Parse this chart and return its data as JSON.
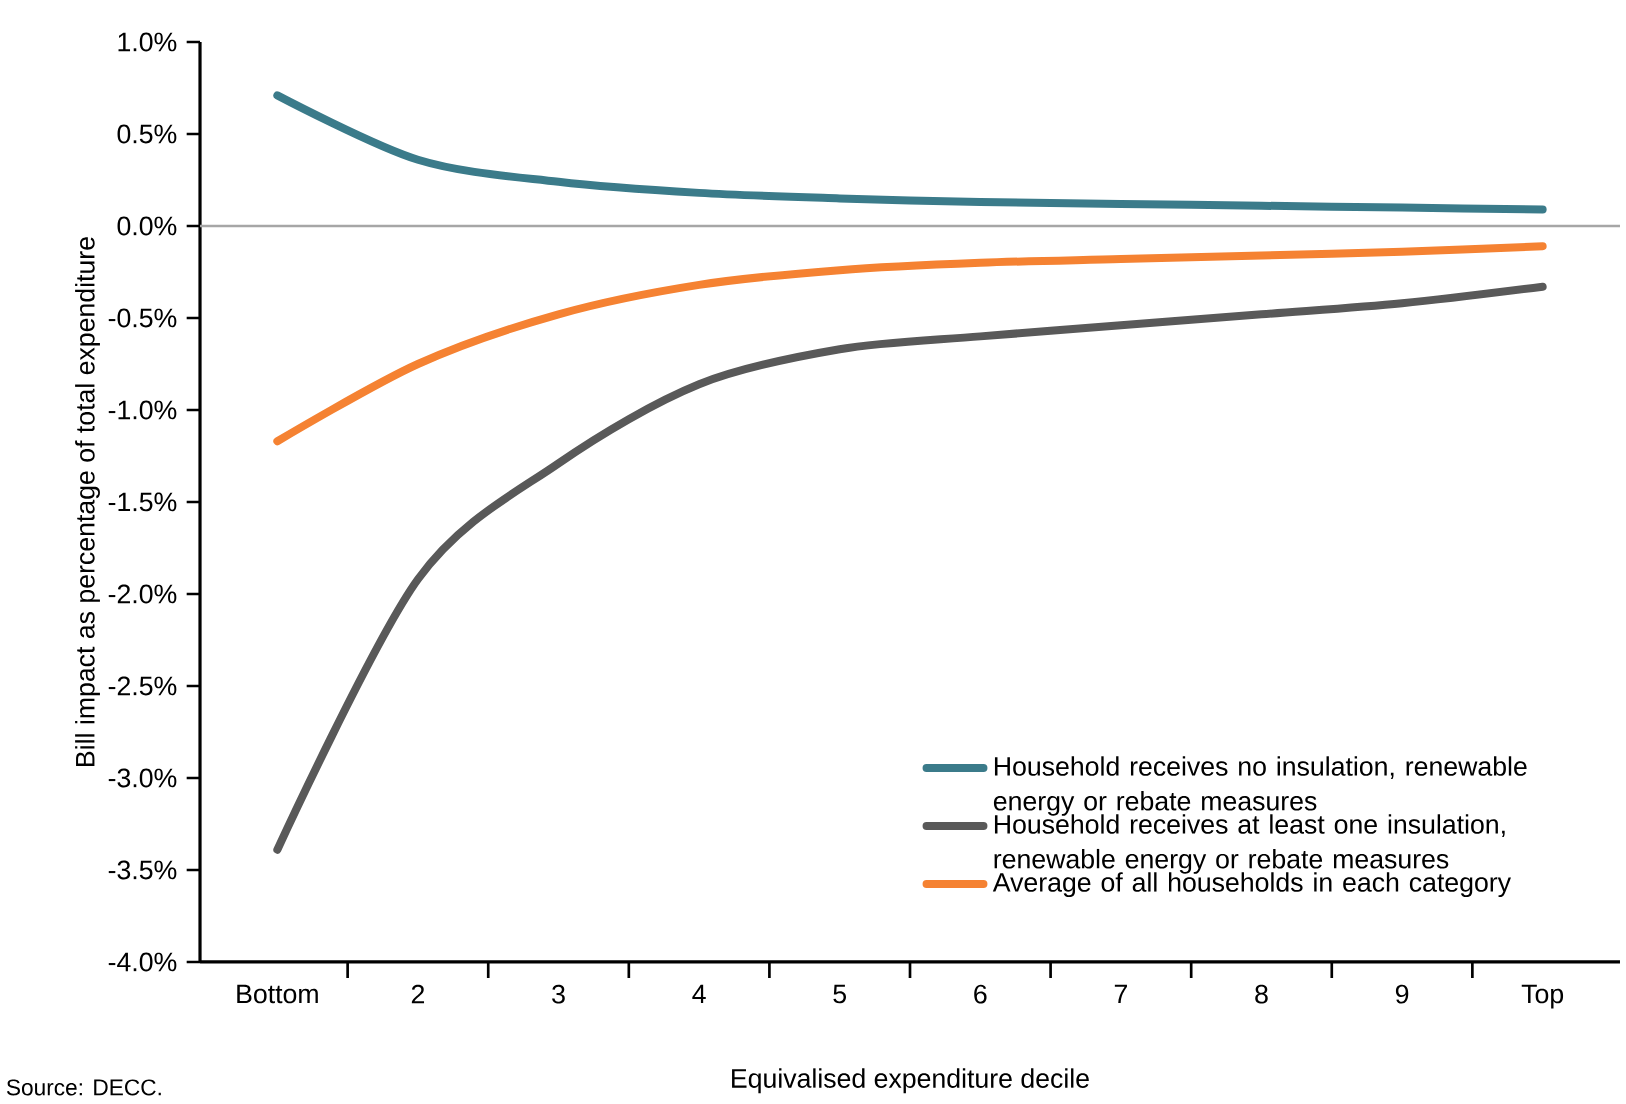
{
  "chart_data": {
    "type": "line",
    "xlabel": "Equivalised expenditure decile",
    "ylabel": "Bill impact as percentage of total expenditure",
    "categories": [
      "Bottom",
      "2",
      "3",
      "4",
      "5",
      "6",
      "7",
      "8",
      "9",
      "Top"
    ],
    "series": [
      {
        "name": "Household receives no insulation, renewable energy or rebate measures",
        "color": "#3b7b8a",
        "values": [
          0.71,
          0.36,
          0.24,
          0.18,
          0.15,
          0.13,
          0.12,
          0.11,
          0.1,
          0.09
        ]
      },
      {
        "name": "Household receives at least one insulation, renewable energy or rebate measures",
        "color": "#595959",
        "values": [
          -3.39,
          -1.92,
          -1.29,
          -0.86,
          -0.67,
          -0.6,
          -0.54,
          -0.48,
          -0.42,
          -0.33
        ]
      },
      {
        "name": "Average of all households in each category",
        "color": "#f58232",
        "values": [
          -1.17,
          -0.75,
          -0.48,
          -0.32,
          -0.24,
          -0.2,
          -0.18,
          -0.16,
          -0.14,
          -0.11
        ]
      }
    ],
    "ylim": [
      -4.0,
      1.0
    ],
    "yticks": [
      {
        "value": -4.0,
        "label": "-4.0%"
      },
      {
        "value": -3.5,
        "label": "-3.5%"
      },
      {
        "value": -3.0,
        "label": "-3.0%"
      },
      {
        "value": -2.5,
        "label": "-2.5%"
      },
      {
        "value": -2.0,
        "label": "-2.0%"
      },
      {
        "value": -1.5,
        "label": "-1.5%"
      },
      {
        "value": -1.0,
        "label": "-1.0%"
      },
      {
        "value": -0.5,
        "label": "-0.5%"
      },
      {
        "value": 0.0,
        "label": "0.0%"
      },
      {
        "value": 0.5,
        "label": "0.5%"
      },
      {
        "value": 1.0,
        "label": "1.0%"
      }
    ],
    "ref_lines": [
      {
        "axis": "y",
        "value": 0,
        "color": "#a6a6a6"
      }
    ],
    "legend": "bottom right",
    "marker": "none",
    "line_style": "solid",
    "annotations": [
      "Source: DECC."
    ]
  }
}
